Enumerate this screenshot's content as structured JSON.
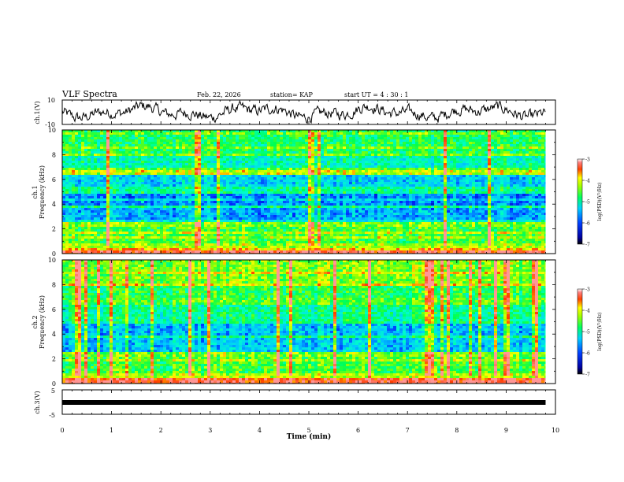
{
  "header": {
    "title": "VLF Spectra",
    "date": "Feb. 22, 2026",
    "station": "station= KAP",
    "start_ut": "start  UT =   4 : 30 : 1"
  },
  "chart_data": [
    {
      "type": "line",
      "panel": "ch1-waveform",
      "ylabel": "ch.1(V)",
      "ytick_labels": [
        "10",
        "-10"
      ],
      "ylim": [
        -10,
        10
      ],
      "xlim": [
        0,
        10
      ],
      "xlabel": "",
      "description_values": "noise waveform fluctuating roughly between -8 and 8 V over 0 to 9.8 min"
    },
    {
      "type": "heatmap",
      "panel": "ch1-spectrogram",
      "ylabel": "ch.1\nFrequency (kHz)",
      "ylabel_line1": "ch.1",
      "ylabel_line2": "Frequency (kHz)",
      "ytick_labels": [
        "0",
        "2",
        "4",
        "6",
        "8",
        "10"
      ],
      "ylim": [
        0,
        10
      ],
      "xlim": [
        0,
        10
      ],
      "data_end_min": 9.8,
      "colorbar": {
        "label": "log(PSD)(V²/Hz)",
        "tick_labels": [
          "-3",
          "-4",
          "-5",
          "-6",
          "-7"
        ],
        "range": [
          -7,
          -3
        ]
      }
    },
    {
      "type": "heatmap",
      "panel": "ch2-spectrogram",
      "ylabel_line1": "ch.2",
      "ylabel_line2": "Frequency (kHz)",
      "ytick_labels": [
        "0",
        "2",
        "4",
        "6",
        "8",
        "10"
      ],
      "ylim": [
        0,
        10
      ],
      "xlim": [
        0,
        10
      ],
      "data_end_min": 9.8,
      "colorbar": {
        "label": "log(PSD)(V²/Hz)",
        "tick_labels": [
          "-3",
          "-4",
          "-5",
          "-6",
          "-7"
        ],
        "range": [
          -7,
          -3
        ]
      }
    },
    {
      "type": "line",
      "panel": "ch3-waveform",
      "ylabel": "ch.3(V)",
      "ytick_labels": [
        "5",
        "-5"
      ],
      "ylim": [
        -5,
        5
      ],
      "xlim": [
        0,
        10
      ],
      "xlabel": "Time  (min)",
      "xtick_labels": [
        "0",
        "1",
        "2",
        "3",
        "4",
        "5",
        "6",
        "7",
        "8",
        "9",
        "10"
      ],
      "description_values": "constant band near -1 V from 0 to 9.8 min"
    }
  ],
  "colors": {
    "background": "#ffffff",
    "axis": "#000000",
    "colormap": [
      "#000080",
      "#0000ff",
      "#00a0ff",
      "#00ffff",
      "#00ff80",
      "#40ff00",
      "#ffff00",
      "#ff8000",
      "#ff0000",
      "#ffffff"
    ]
  }
}
